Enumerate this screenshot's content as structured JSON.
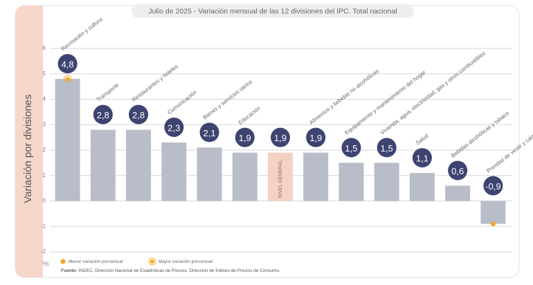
{
  "chart_data": {
    "type": "bar",
    "title": "Julio de 2025 - Variación mensual de las 12 divisiones del IPC. Total nacional",
    "y_label": "Variación por divisiones",
    "y_unit": "%",
    "categories": [
      "Recreación y cultura",
      "Transporte",
      "Restaurantes y hoteles",
      "Comunicación",
      "Bienes y servicios varios",
      "Educación",
      "NIVEL GENERAL",
      "Alimentos y bebidas no alcohólicas",
      "Equipamiento y mantenimiento del hogar",
      "Vivienda, agua, electricidad, gas y otros combustibles",
      "Salud",
      "Bebidas alcohólicas y tabaco",
      "Prendas de vestir y calzado"
    ],
    "values": [
      4.8,
      2.8,
      2.8,
      2.3,
      2.1,
      1.9,
      1.9,
      1.9,
      1.5,
      1.5,
      1.1,
      0.6,
      -0.9
    ],
    "value_labels": [
      "4,8",
      "2,8",
      "2,8",
      "2,3",
      "2,1",
      "1,9",
      "1,9",
      "1,9",
      "1,5",
      "1,5",
      "1,1",
      "0,6",
      "-0,9"
    ],
    "colors": [
      "#b9bdc9",
      "#b9bdc9",
      "#b9bdc9",
      "#b9bdc9",
      "#b9bdc9",
      "#b9bdc9",
      "#f3d2c3",
      "#b9bdc9",
      "#b9bdc9",
      "#b9bdc9",
      "#b9bdc9",
      "#b9bdc9",
      "#b9bdc9"
    ],
    "ylim": [
      -2,
      6
    ],
    "yticks": [
      -2,
      -1,
      0,
      1,
      2,
      3,
      4,
      5,
      6
    ],
    "grid": true,
    "legend": [
      "Menor variación porcentual",
      "Mayor variación porcentual"
    ],
    "source_label": "Fuente:",
    "source": "INDEC, Dirección Nacional de Estadísticas de Precios. Dirección de Índices de Precios de Consumo."
  }
}
